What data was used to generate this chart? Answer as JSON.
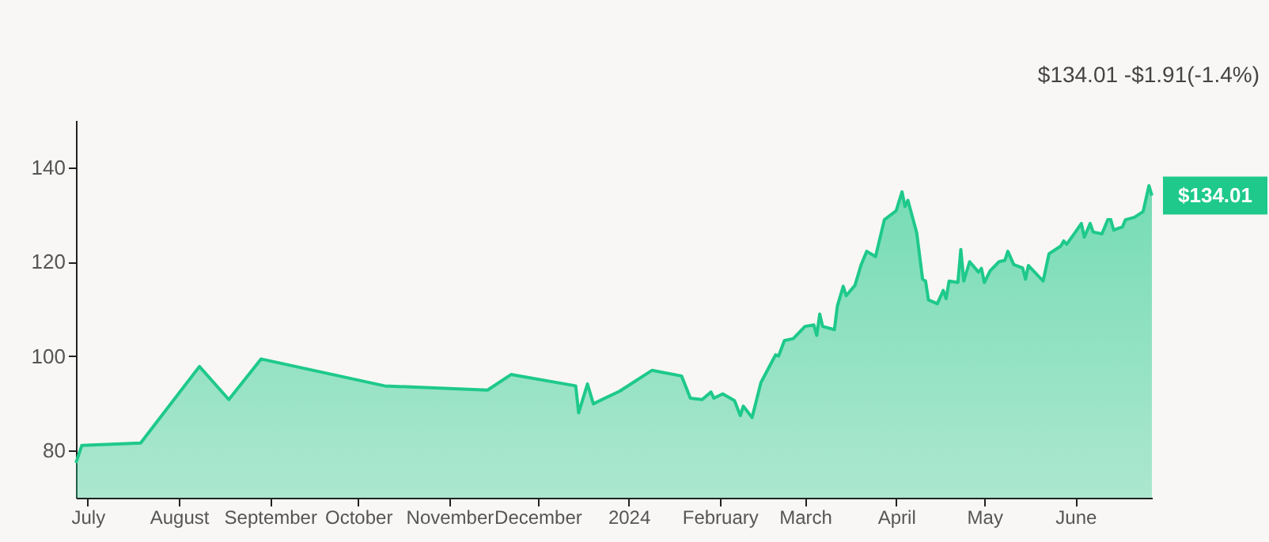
{
  "chart_data": {
    "type": "area",
    "x": [
      "2023-06-27",
      "2023-06-29",
      "2023-07-19",
      "2023-08-08",
      "2023-08-18",
      "2023-08-29",
      "2023-10-10",
      "2023-11-14",
      "2023-11-22",
      "2023-12-14",
      "2023-12-15",
      "2023-12-18",
      "2023-12-20",
      "2023-12-29",
      "2024-01-09",
      "2024-01-19",
      "2024-01-22",
      "2024-01-26",
      "2024-01-29",
      "2024-01-30",
      "2024-02-02",
      "2024-02-06",
      "2024-02-08",
      "2024-02-09",
      "2024-02-12",
      "2024-02-15",
      "2024-02-20",
      "2024-02-21",
      "2024-02-23",
      "2024-02-26",
      "2024-03-01",
      "2024-03-04",
      "2024-03-05",
      "2024-03-06",
      "2024-03-07",
      "2024-03-11",
      "2024-03-12",
      "2024-03-14",
      "2024-03-15",
      "2024-03-18",
      "2024-03-20",
      "2024-03-22",
      "2024-03-25",
      "2024-03-28",
      "2024-04-01",
      "2024-04-03",
      "2024-04-04",
      "2024-04-05",
      "2024-04-08",
      "2024-04-10",
      "2024-04-11",
      "2024-04-12",
      "2024-04-15",
      "2024-04-17",
      "2024-04-18",
      "2024-04-19",
      "2024-04-22",
      "2024-04-23",
      "2024-04-24",
      "2024-04-26",
      "2024-04-29",
      "2024-04-30",
      "2024-05-01",
      "2024-05-03",
      "2024-05-06",
      "2024-05-08",
      "2024-05-09",
      "2024-05-11",
      "2024-05-14",
      "2024-05-15",
      "2024-05-16",
      "2024-05-21",
      "2024-05-23",
      "2024-05-27",
      "2024-05-28",
      "2024-05-29",
      "2024-06-01",
      "2024-06-03",
      "2024-06-04",
      "2024-06-06",
      "2024-06-07",
      "2024-06-10",
      "2024-06-12",
      "2024-06-13",
      "2024-06-14",
      "2024-06-17",
      "2024-06-18",
      "2024-06-21",
      "2024-06-24",
      "2024-06-26",
      "2024-06-27"
    ],
    "series": [
      {
        "color": "#1ec98b",
        "values": [
          77.4,
          81.1,
          81.6,
          97.8,
          90.8,
          99.4,
          93.7,
          92.8,
          96.1,
          93.7,
          88.0,
          94.1,
          89.9,
          92.6,
          97.0,
          95.8,
          91.1,
          90.8,
          92.4,
          91.1,
          92.0,
          90.6,
          87.4,
          89.4,
          87.0,
          94.4,
          100.3,
          100.0,
          103.3,
          103.7,
          106.3,
          106.6,
          104.4,
          108.9,
          106.3,
          105.6,
          110.6,
          114.8,
          112.8,
          115.0,
          119.2,
          122.2,
          121.1,
          128.9,
          130.8,
          134.8,
          131.7,
          133.0,
          126.1,
          116.3,
          115.9,
          111.9,
          111.1,
          113.9,
          112.2,
          115.9,
          115.6,
          122.6,
          115.9,
          120.0,
          117.8,
          118.6,
          115.6,
          118.1,
          120.0,
          120.3,
          122.2,
          119.4,
          118.7,
          116.3,
          119.2,
          115.9,
          121.7,
          123.3,
          124.4,
          123.7,
          126.3,
          128.1,
          125.2,
          128.1,
          126.3,
          125.9,
          128.9,
          128.9,
          126.7,
          127.4,
          128.9,
          129.4,
          130.6,
          136.1,
          134.01
        ]
      }
    ],
    "xlim": [
      "2023-06-27",
      "2024-06-27"
    ],
    "xticks": [
      {
        "value": "2023-07-01",
        "label": "July"
      },
      {
        "value": "2023-08-01",
        "label": "August"
      },
      {
        "value": "2023-09-01",
        "label": "September"
      },
      {
        "value": "2023-10-01",
        "label": "October"
      },
      {
        "value": "2023-11-01",
        "label": "November"
      },
      {
        "value": "2023-12-01",
        "label": "December"
      },
      {
        "value": "2024-01-01",
        "label": "2024"
      },
      {
        "value": "2024-02-01",
        "label": "February"
      },
      {
        "value": "2024-03-01",
        "label": "March"
      },
      {
        "value": "2024-04-01",
        "label": "April"
      },
      {
        "value": "2024-05-01",
        "label": "May"
      },
      {
        "value": "2024-06-01",
        "label": "June"
      }
    ],
    "ylim": [
      70,
      150
    ],
    "yticks": [
      80,
      100,
      120,
      140
    ],
    "grid": false,
    "annotations": [
      {
        "text": "$134.01",
        "x": "2024-06-27",
        "y": 134.01
      },
      "$134.01 -$1.91(-1.4%)"
    ]
  }
}
